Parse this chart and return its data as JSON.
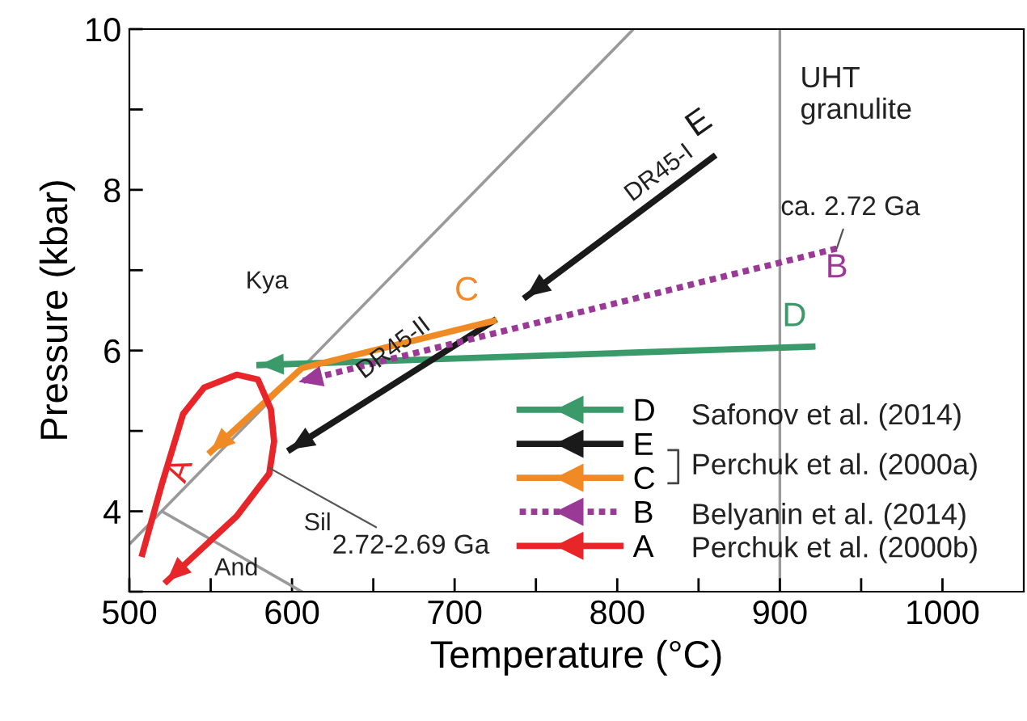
{
  "chart_data": {
    "type": "line",
    "xlabel": "Temperature (°C)",
    "ylabel": "Pressure (kbar)",
    "xlim": [
      500,
      1050
    ],
    "ylim": [
      3,
      10
    ],
    "xticks": [
      500,
      {
        "value": 550,
        "label": null
      },
      600,
      {
        "value": 650,
        "label": null
      },
      700,
      {
        "value": 750,
        "label": null
      },
      800,
      {
        "value": 850,
        "label": null
      },
      900,
      {
        "value": 950,
        "label": null
      },
      1000
    ],
    "yticks": [
      {
        "value": 3,
        "label": null
      },
      4,
      {
        "value": 5,
        "label": null
      },
      6,
      {
        "value": 7,
        "label": null
      },
      8,
      {
        "value": 9,
        "label": null
      },
      10
    ],
    "grid": false,
    "legend": "bottom right",
    "marker": "none",
    "series": [
      {
        "color": "#9a9a9a",
        "x": [
          500,
          810
        ],
        "values": [
          3.59,
          10
        ]
      },
      {
        "color": "#9a9a9a",
        "x": [
          520,
          606
        ],
        "values": [
          4.0,
          3.0
        ]
      },
      {
        "name": "D",
        "color": "#3a9a6a",
        "x": [
          920,
          580
        ],
        "values": [
          6.05,
          5.82
        ]
      },
      {
        "name": "E",
        "color": "#1a1a1a",
        "x": [
          859,
          744,
          null,
          724,
          599
        ],
        "values": [
          8.41,
          6.67,
          null,
          6.37,
          4.77
        ]
      },
      {
        "name": "C",
        "color": "#f08a24",
        "x": [
          724,
          606,
          550
        ],
        "values": [
          6.37,
          5.78,
          4.74
        ]
      },
      {
        "name": "B",
        "color": "#9b3a96",
        "line_style": "dotted",
        "x": [
          935,
          604
        ],
        "values": [
          7.27,
          5.61
        ]
      },
      {
        "name": "A",
        "color": "#e8262a",
        "x": [
          508,
          520,
          533,
          546,
          566,
          579,
          587,
          589,
          586,
          566,
          523
        ],
        "values": [
          3.47,
          4.34,
          5.21,
          5.54,
          5.7,
          5.64,
          5.27,
          4.87,
          4.47,
          3.94,
          3.13
        ]
      }
    ],
    "ref_lines": [
      {
        "axis": "x",
        "value": 900,
        "color": "#9a9a9a"
      }
    ],
    "annotations": [
      "Kya",
      "Sil",
      "And",
      "UHT\ngranulite",
      "DR45-I",
      "DR45-II",
      {
        "text": "ca. 2.72 Ga",
        "x": 935,
        "y": 7.27
      },
      {
        "text": "2.72-2.69 Ga",
        "x": 586,
        "y": 4.54
      },
      "Safonov et al. (2014)",
      "Perchuk et al. (2000a)",
      "Belyanin et al. (2014)",
      "Perchuk et al. (2000b)"
    ]
  }
}
